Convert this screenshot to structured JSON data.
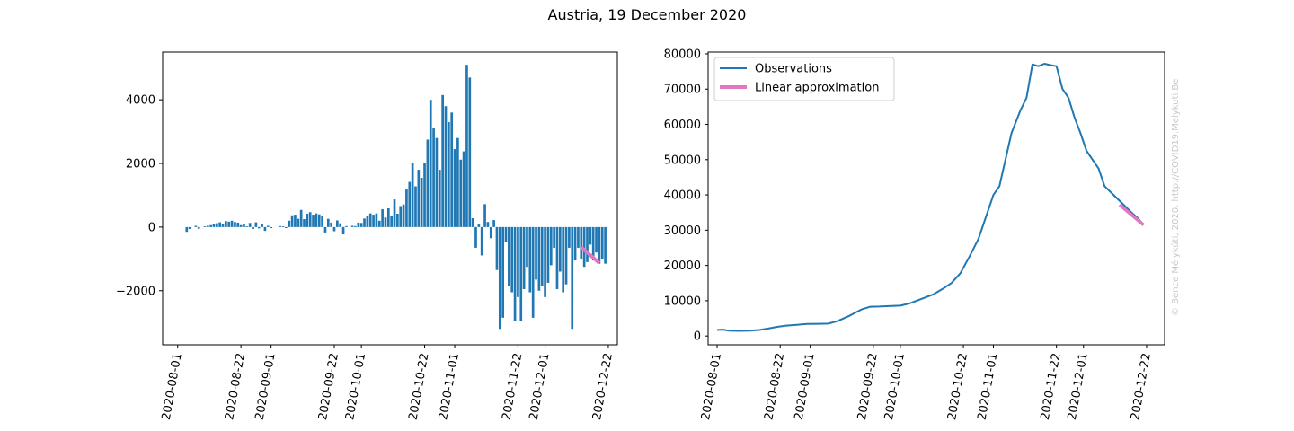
{
  "figure": {
    "title": "Austria, 19 December 2020",
    "watermark": "© Bence Mélykúti, 2020. http://COVID19.Melykuti.Be"
  },
  "colors": {
    "observations": "#1f77b4",
    "approximation": "#e377c2"
  },
  "chart_data": [
    {
      "type": "bar",
      "title": "",
      "xlabel": "",
      "ylabel": "",
      "x_tick_labels": [
        "2020-08-01",
        "2020-08-22",
        "2020-09-01",
        "2020-09-22",
        "2020-10-01",
        "2020-10-22",
        "2020-11-01",
        "2020-11-22",
        "2020-12-01",
        "2020-12-22"
      ],
      "y_tick_labels": [
        "−2000",
        "0",
        "2000",
        "4000"
      ],
      "ylim": [
        -3700,
        5500
      ],
      "xlim": [
        "2020-07-27",
        "2020-12-25"
      ],
      "series": [
        {
          "values": [
            [
              "2020-08-04",
              -150
            ],
            [
              "2020-08-05",
              -60
            ],
            [
              "2020-08-07",
              40
            ],
            [
              "2020-08-08",
              -50
            ],
            [
              "2020-08-10",
              20
            ],
            [
              "2020-08-11",
              40
            ],
            [
              "2020-08-12",
              60
            ],
            [
              "2020-08-13",
              90
            ],
            [
              "2020-08-14",
              120
            ],
            [
              "2020-08-15",
              150
            ],
            [
              "2020-08-16",
              110
            ],
            [
              "2020-08-17",
              190
            ],
            [
              "2020-08-18",
              170
            ],
            [
              "2020-08-19",
              200
            ],
            [
              "2020-08-20",
              160
            ],
            [
              "2020-08-21",
              140
            ],
            [
              "2020-08-22",
              60
            ],
            [
              "2020-08-23",
              80
            ],
            [
              "2020-08-24",
              20
            ],
            [
              "2020-08-25",
              130
            ],
            [
              "2020-08-26",
              -60
            ],
            [
              "2020-08-27",
              150
            ],
            [
              "2020-08-28",
              -40
            ],
            [
              "2020-08-29",
              100
            ],
            [
              "2020-08-30",
              -120
            ],
            [
              "2020-08-31",
              40
            ],
            [
              "2020-09-01",
              -30
            ],
            [
              "2020-09-04",
              30
            ],
            [
              "2020-09-05",
              20
            ],
            [
              "2020-09-06",
              -30
            ],
            [
              "2020-09-07",
              200
            ],
            [
              "2020-09-08",
              370
            ],
            [
              "2020-09-09",
              390
            ],
            [
              "2020-09-10",
              260
            ],
            [
              "2020-09-11",
              540
            ],
            [
              "2020-09-12",
              250
            ],
            [
              "2020-09-13",
              420
            ],
            [
              "2020-09-14",
              470
            ],
            [
              "2020-09-15",
              390
            ],
            [
              "2020-09-16",
              430
            ],
            [
              "2020-09-17",
              400
            ],
            [
              "2020-09-18",
              360
            ],
            [
              "2020-09-19",
              -170
            ],
            [
              "2020-09-20",
              260
            ],
            [
              "2020-09-21",
              140
            ],
            [
              "2020-09-22",
              -130
            ],
            [
              "2020-09-23",
              210
            ],
            [
              "2020-09-24",
              120
            ],
            [
              "2020-09-25",
              -230
            ],
            [
              "2020-09-26",
              30
            ],
            [
              "2020-09-28",
              40
            ],
            [
              "2020-09-29",
              30
            ],
            [
              "2020-09-30",
              140
            ],
            [
              "2020-10-01",
              130
            ],
            [
              "2020-10-02",
              270
            ],
            [
              "2020-10-03",
              340
            ],
            [
              "2020-10-04",
              430
            ],
            [
              "2020-10-05",
              390
            ],
            [
              "2020-10-06",
              430
            ],
            [
              "2020-10-07",
              200
            ],
            [
              "2020-10-08",
              560
            ],
            [
              "2020-10-09",
              300
            ],
            [
              "2020-10-10",
              590
            ],
            [
              "2020-10-11",
              340
            ],
            [
              "2020-10-12",
              870
            ],
            [
              "2020-10-13",
              420
            ],
            [
              "2020-10-14",
              660
            ],
            [
              "2020-10-15",
              710
            ],
            [
              "2020-10-16",
              1180
            ],
            [
              "2020-10-17",
              1420
            ],
            [
              "2020-10-18",
              2000
            ],
            [
              "2020-10-19",
              1280
            ],
            [
              "2020-10-20",
              1800
            ],
            [
              "2020-10-21",
              1550
            ],
            [
              "2020-10-22",
              2020
            ],
            [
              "2020-10-23",
              2750
            ],
            [
              "2020-10-24",
              4000
            ],
            [
              "2020-10-25",
              3100
            ],
            [
              "2020-10-26",
              2800
            ],
            [
              "2020-10-27",
              1800
            ],
            [
              "2020-10-28",
              4150
            ],
            [
              "2020-10-29",
              3800
            ],
            [
              "2020-10-30",
              3300
            ],
            [
              "2020-10-31",
              3600
            ],
            [
              "2020-11-01",
              2450
            ],
            [
              "2020-11-02",
              2800
            ],
            [
              "2020-11-03",
              2120
            ],
            [
              "2020-11-04",
              2380
            ],
            [
              "2020-11-05",
              5100
            ],
            [
              "2020-11-06",
              4700
            ],
            [
              "2020-11-07",
              280
            ],
            [
              "2020-11-08",
              -650
            ],
            [
              "2020-11-09",
              80
            ],
            [
              "2020-11-10",
              -890
            ],
            [
              "2020-11-11",
              720
            ],
            [
              "2020-11-12",
              160
            ],
            [
              "2020-11-13",
              -350
            ],
            [
              "2020-11-14",
              220
            ],
            [
              "2020-11-15",
              -1350
            ],
            [
              "2020-11-16",
              -3200
            ],
            [
              "2020-11-17",
              -2850
            ],
            [
              "2020-11-18",
              -470
            ],
            [
              "2020-11-19",
              -1850
            ],
            [
              "2020-11-20",
              -2050
            ],
            [
              "2020-11-21",
              -2950
            ],
            [
              "2020-11-22",
              -2200
            ],
            [
              "2020-11-23",
              -2950
            ],
            [
              "2020-11-24",
              -1950
            ],
            [
              "2020-11-25",
              -1250
            ],
            [
              "2020-11-26",
              -2050
            ],
            [
              "2020-11-27",
              -2850
            ],
            [
              "2020-11-28",
              -1650
            ],
            [
              "2020-11-29",
              -2000
            ],
            [
              "2020-11-30",
              -1850
            ],
            [
              "2020-12-01",
              -2200
            ],
            [
              "2020-12-02",
              -1750
            ],
            [
              "2020-12-03",
              -1200
            ],
            [
              "2020-12-04",
              -650
            ],
            [
              "2020-12-05",
              -1950
            ],
            [
              "2020-12-06",
              -1400
            ],
            [
              "2020-12-07",
              -2050
            ],
            [
              "2020-12-08",
              -1800
            ],
            [
              "2020-12-09",
              -650
            ],
            [
              "2020-12-10",
              -3200
            ],
            [
              "2020-12-11",
              -1050
            ],
            [
              "2020-12-12",
              -650
            ],
            [
              "2020-12-13",
              -1000
            ],
            [
              "2020-12-14",
              -1250
            ],
            [
              "2020-12-15",
              -1100
            ],
            [
              "2020-12-16",
              -550
            ],
            [
              "2020-12-17",
              -1050
            ],
            [
              "2020-12-18",
              -800
            ],
            [
              "2020-12-19",
              -1150
            ],
            [
              "2020-12-20",
              -1000
            ],
            [
              "2020-12-21",
              -1150
            ]
          ]
        }
      ],
      "approximation_line": [
        [
          "2020-12-13",
          -630
        ],
        [
          "2020-12-19",
          -1130
        ]
      ]
    },
    {
      "type": "line",
      "title": "",
      "xlabel": "",
      "ylabel": "",
      "x_tick_labels": [
        "2020-08-01",
        "2020-08-22",
        "2020-09-01",
        "2020-09-22",
        "2020-10-01",
        "2020-10-22",
        "2020-11-01",
        "2020-11-22",
        "2020-12-01",
        "2020-12-22"
      ],
      "y_tick_labels": [
        "0",
        "10000",
        "20000",
        "30000",
        "40000",
        "50000",
        "60000",
        "70000",
        "80000"
      ],
      "ylim": [
        -2500,
        80500
      ],
      "xlim": [
        "2020-07-29",
        "2020-12-28"
      ],
      "legend": {
        "position": "upper left",
        "entries": [
          "Observations",
          "Linear approximation"
        ]
      },
      "series": [
        {
          "name": "Observations",
          "values": [
            [
              "2020-08-01",
              1700
            ],
            [
              "2020-08-03",
              1800
            ],
            [
              "2020-08-05",
              1500
            ],
            [
              "2020-08-08",
              1450
            ],
            [
              "2020-08-12",
              1500
            ],
            [
              "2020-08-15",
              1700
            ],
            [
              "2020-08-18",
              2100
            ],
            [
              "2020-08-21",
              2600
            ],
            [
              "2020-08-24",
              2950
            ],
            [
              "2020-08-28",
              3200
            ],
            [
              "2020-08-31",
              3400
            ],
            [
              "2020-09-04",
              3450
            ],
            [
              "2020-09-07",
              3500
            ],
            [
              "2020-09-10",
              4200
            ],
            [
              "2020-09-14",
              5700
            ],
            [
              "2020-09-18",
              7500
            ],
            [
              "2020-09-21",
              8300
            ],
            [
              "2020-09-24",
              8350
            ],
            [
              "2020-09-28",
              8500
            ],
            [
              "2020-10-01",
              8600
            ],
            [
              "2020-10-04",
              9200
            ],
            [
              "2020-10-08",
              10500
            ],
            [
              "2020-10-12",
              11800
            ],
            [
              "2020-10-15",
              13300
            ],
            [
              "2020-10-18",
              15000
            ],
            [
              "2020-10-21",
              17800
            ],
            [
              "2020-10-24",
              22500
            ],
            [
              "2020-10-27",
              27500
            ],
            [
              "2020-10-29",
              32500
            ],
            [
              "2020-11-01",
              40000
            ],
            [
              "2020-11-03",
              42500
            ],
            [
              "2020-11-05",
              50000
            ],
            [
              "2020-11-07",
              57500
            ],
            [
              "2020-11-10",
              64000
            ],
            [
              "2020-11-12",
              67500
            ],
            [
              "2020-11-14",
              77000
            ],
            [
              "2020-11-16",
              76500
            ],
            [
              "2020-11-18",
              77200
            ],
            [
              "2020-11-20",
              76800
            ],
            [
              "2020-11-22",
              76500
            ],
            [
              "2020-11-24",
              70000
            ],
            [
              "2020-11-26",
              67500
            ],
            [
              "2020-11-28",
              62000
            ],
            [
              "2020-11-30",
              57500
            ],
            [
              "2020-12-02",
              52500
            ],
            [
              "2020-12-04",
              50000
            ],
            [
              "2020-12-06",
              47500
            ],
            [
              "2020-12-08",
              42500
            ],
            [
              "2020-12-11",
              40000
            ],
            [
              "2020-12-14",
              37500
            ],
            [
              "2020-12-17",
              35000
            ],
            [
              "2020-12-19",
              33500
            ],
            [
              "2020-12-21",
              31500
            ]
          ]
        },
        {
          "name": "Linear approximation",
          "values": [
            [
              "2020-12-13",
              37200
            ],
            [
              "2020-12-21",
              31500
            ]
          ]
        }
      ]
    }
  ]
}
